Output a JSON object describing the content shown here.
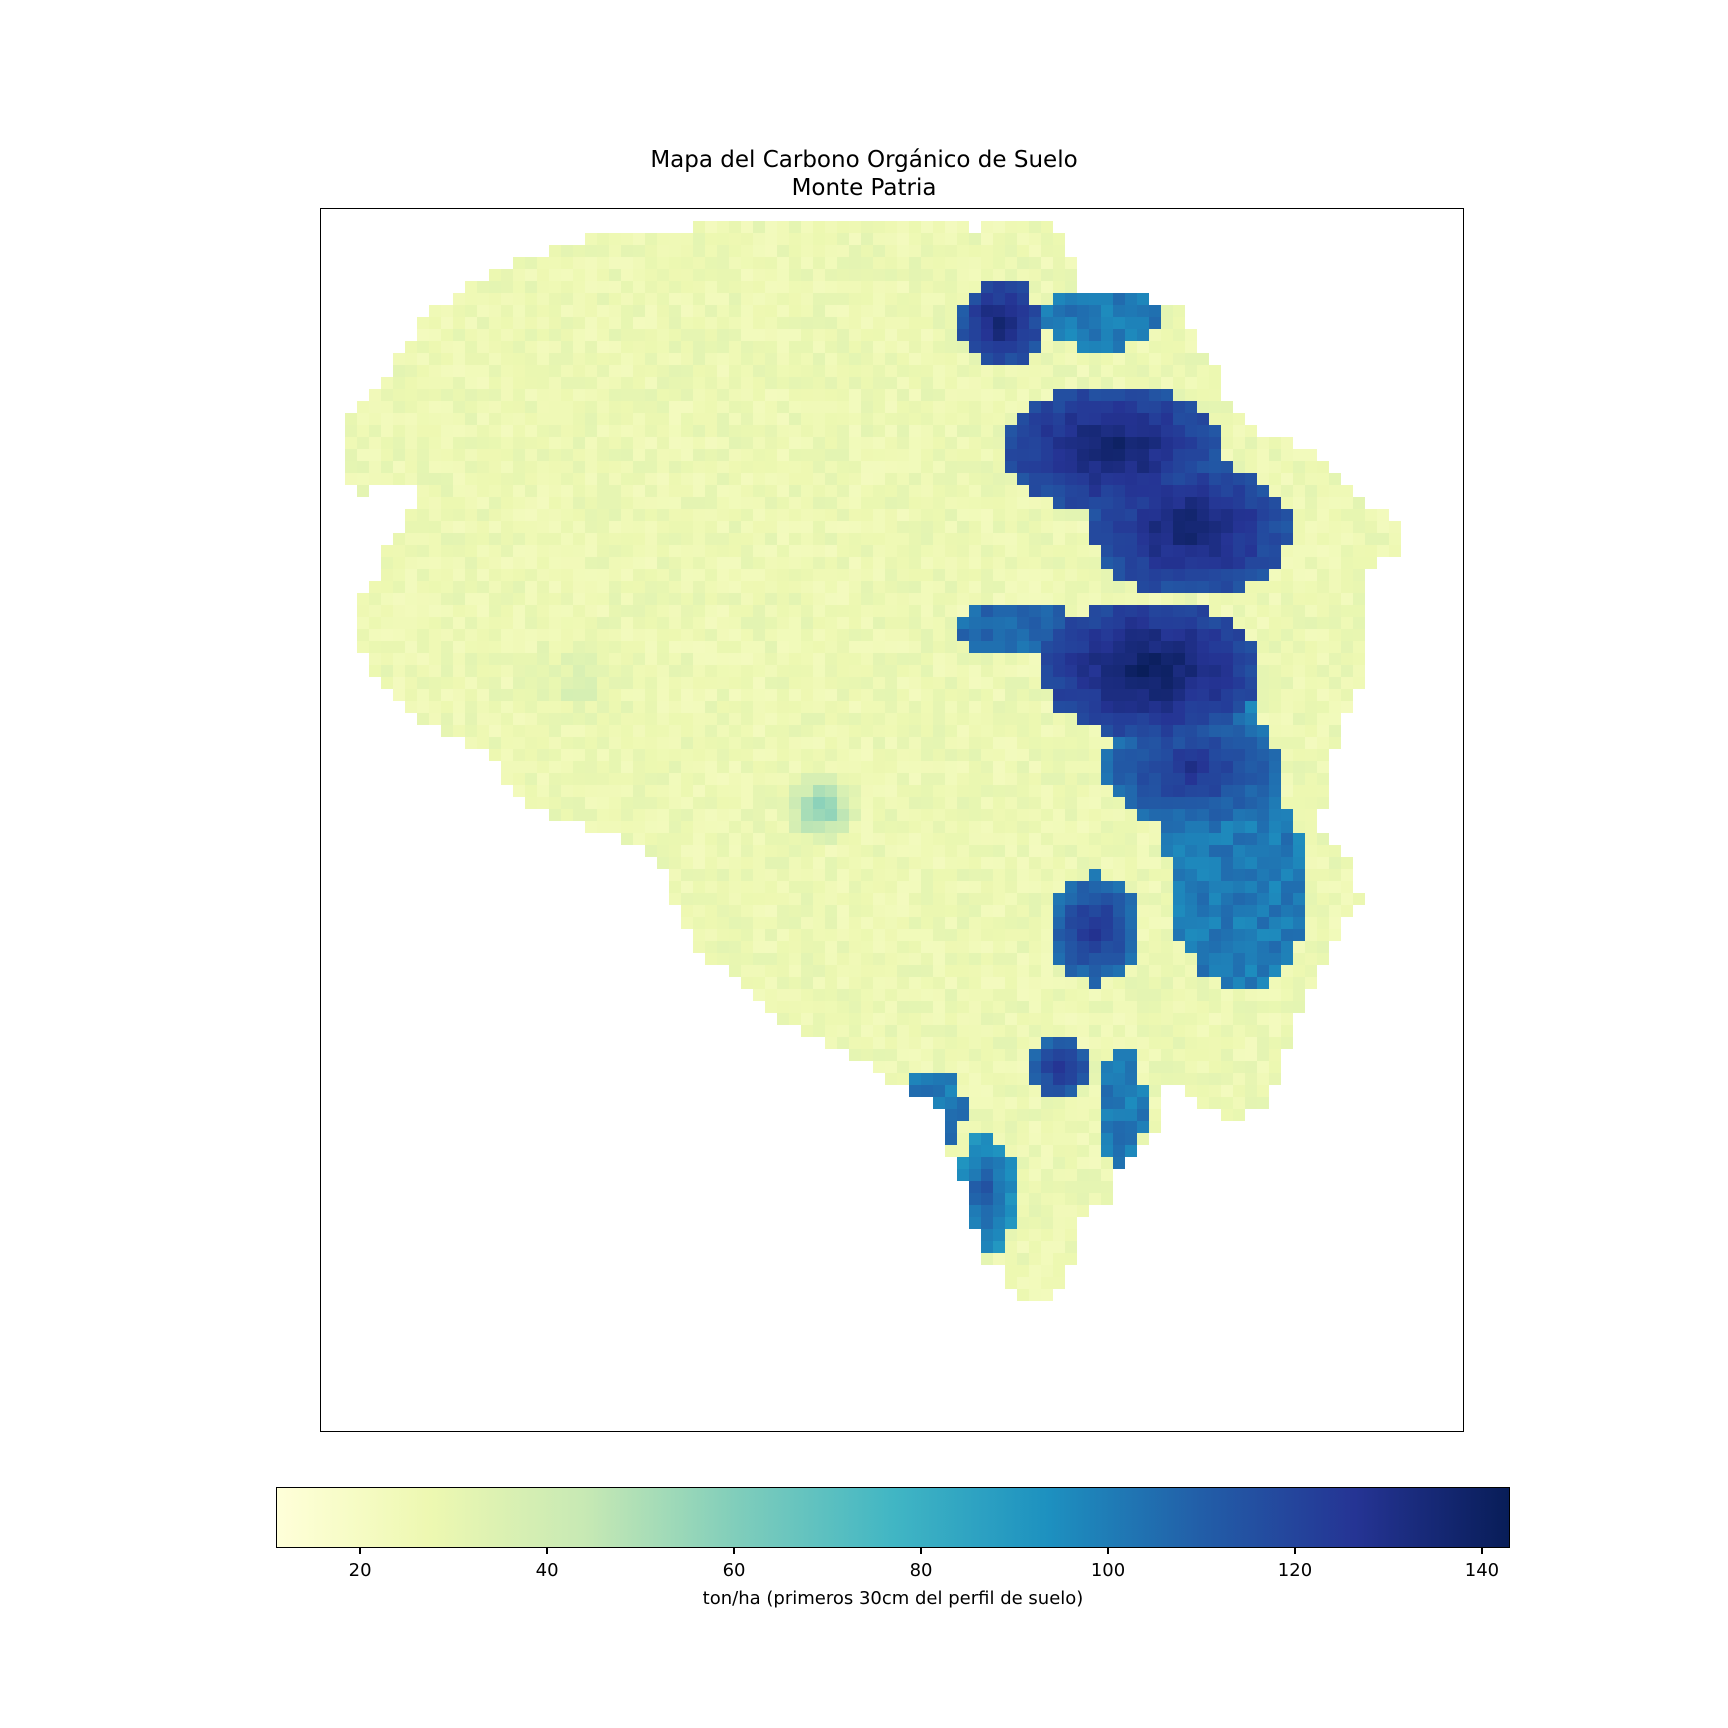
{
  "title_lines": [
    "Mapa del Carbono Orgánico de Suelo",
    "Monte Patria"
  ],
  "colorbar": {
    "label": "ton/ha (primeros 30cm del perfil de suelo)",
    "min": 11,
    "max": 143,
    "ticks": [
      20,
      40,
      60,
      80,
      100,
      120,
      140
    ],
    "colormap": "YlGnBu",
    "stops": [
      "#ffffd9",
      "#edf8b1",
      "#c7e9b4",
      "#7fcdbb",
      "#41b6c4",
      "#1d91c0",
      "#225ea8",
      "#253494",
      "#081d58"
    ]
  },
  "map": {
    "region": "Monte Patria",
    "value_range": [
      11,
      143
    ],
    "dominant_low_range": [
      15,
      35
    ],
    "eastern_high_range": [
      90,
      140
    ]
  }
}
